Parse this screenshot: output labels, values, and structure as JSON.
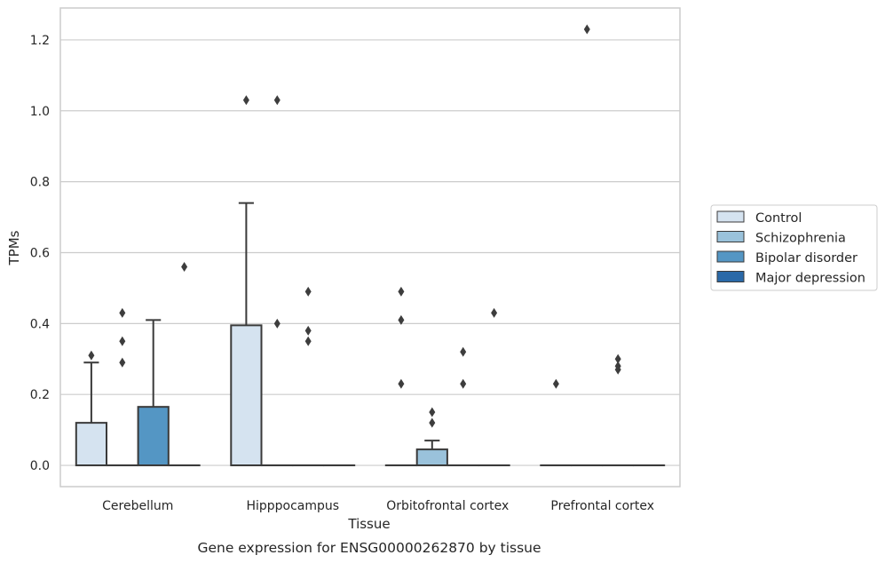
{
  "chart_data": {
    "type": "box",
    "title": "",
    "caption": "Gene expression for ENSG00000262870 by tissue",
    "xlabel": "Tissue",
    "ylabel": "TPMs",
    "ylim": [
      -0.06,
      1.29
    ],
    "yticks": [
      0.0,
      0.2,
      0.4,
      0.6,
      0.8,
      1.0,
      1.2
    ],
    "ytick_labels": [
      "0.0",
      "0.2",
      "0.4",
      "0.6",
      "0.8",
      "1.0",
      "1.2"
    ],
    "grid": true,
    "legend_position": "right",
    "categories": [
      "Cerebellum",
      "Hipppocampus",
      "Orbitofrontal cortex",
      "Prefrontal cortex"
    ],
    "series": [
      {
        "name": "Control",
        "color": "#d5e3f0",
        "boxes": [
          {
            "category": "Cerebellum",
            "q1": 0.0,
            "median": 0.0,
            "q3": 0.12,
            "whisker_low": 0.0,
            "whisker_high": 0.29,
            "outliers": [
              0.31
            ]
          },
          {
            "category": "Hipppocampus",
            "q1": 0.0,
            "median": 0.0,
            "q3": 0.395,
            "whisker_low": 0.0,
            "whisker_high": 0.74,
            "outliers": [
              1.03
            ]
          },
          {
            "category": "Orbitofrontal cortex",
            "q1": 0.0,
            "median": 0.0,
            "q3": 0.0,
            "whisker_low": 0.0,
            "whisker_high": 0.0,
            "outliers": [
              0.49,
              0.41,
              0.23
            ]
          },
          {
            "category": "Prefrontal cortex",
            "q1": 0.0,
            "median": 0.0,
            "q3": 0.0,
            "whisker_low": 0.0,
            "whisker_high": 0.0,
            "outliers": [
              0.23
            ]
          }
        ]
      },
      {
        "name": "Schizophrenia",
        "color": "#9ac2db",
        "boxes": [
          {
            "category": "Cerebellum",
            "q1": 0.0,
            "median": 0.0,
            "q3": 0.0,
            "whisker_low": 0.0,
            "whisker_high": 0.0,
            "outliers": [
              0.43,
              0.35,
              0.29
            ]
          },
          {
            "category": "Hipppocampus",
            "q1": 0.0,
            "median": 0.0,
            "q3": 0.0,
            "whisker_low": 0.0,
            "whisker_high": 0.0,
            "outliers": [
              1.03,
              0.4
            ]
          },
          {
            "category": "Orbitofrontal cortex",
            "q1": 0.0,
            "median": 0.0,
            "q3": 0.045,
            "whisker_low": 0.0,
            "whisker_high": 0.07,
            "outliers": [
              0.15,
              0.12
            ]
          },
          {
            "category": "Prefrontal cortex",
            "q1": 0.0,
            "median": 0.0,
            "q3": 0.0,
            "whisker_low": 0.0,
            "whisker_high": 0.0,
            "outliers": [
              1.23
            ]
          }
        ]
      },
      {
        "name": "Bipolar disorder",
        "color": "#5496c4",
        "boxes": [
          {
            "category": "Cerebellum",
            "q1": 0.0,
            "median": 0.0,
            "q3": 0.165,
            "whisker_low": 0.0,
            "whisker_high": 0.41,
            "outliers": []
          },
          {
            "category": "Hipppocampus",
            "q1": 0.0,
            "median": 0.0,
            "q3": 0.0,
            "whisker_low": 0.0,
            "whisker_high": 0.0,
            "outliers": [
              0.49,
              0.38,
              0.35
            ]
          },
          {
            "category": "Orbitofrontal cortex",
            "q1": 0.0,
            "median": 0.0,
            "q3": 0.0,
            "whisker_low": 0.0,
            "whisker_high": 0.0,
            "outliers": [
              0.32,
              0.23
            ]
          },
          {
            "category": "Prefrontal cortex",
            "q1": 0.0,
            "median": 0.0,
            "q3": 0.0,
            "whisker_low": 0.0,
            "whisker_high": 0.0,
            "outliers": [
              0.3,
              0.28,
              0.27
            ]
          }
        ]
      },
      {
        "name": "Major depression",
        "color": "#2a69a8",
        "boxes": [
          {
            "category": "Cerebellum",
            "q1": 0.0,
            "median": 0.0,
            "q3": 0.0,
            "whisker_low": 0.0,
            "whisker_high": 0.0,
            "outliers": [
              0.56
            ]
          },
          {
            "category": "Hipppocampus",
            "q1": 0.0,
            "median": 0.0,
            "q3": 0.0,
            "whisker_low": 0.0,
            "whisker_high": 0.0,
            "outliers": []
          },
          {
            "category": "Orbitofrontal cortex",
            "q1": 0.0,
            "median": 0.0,
            "q3": 0.0,
            "whisker_low": 0.0,
            "whisker_high": 0.0,
            "outliers": [
              0.43
            ]
          },
          {
            "category": "Prefrontal cortex",
            "q1": 0.0,
            "median": 0.0,
            "q3": 0.0,
            "whisker_low": 0.0,
            "whisker_high": 0.0,
            "outliers": []
          }
        ]
      }
    ],
    "colors": {
      "grid": "#cccccc",
      "frame": "#cccccc",
      "box_edge": "#3a3a3a",
      "outlier": "#3d3d3d",
      "legend_border": "#cccccc"
    }
  }
}
